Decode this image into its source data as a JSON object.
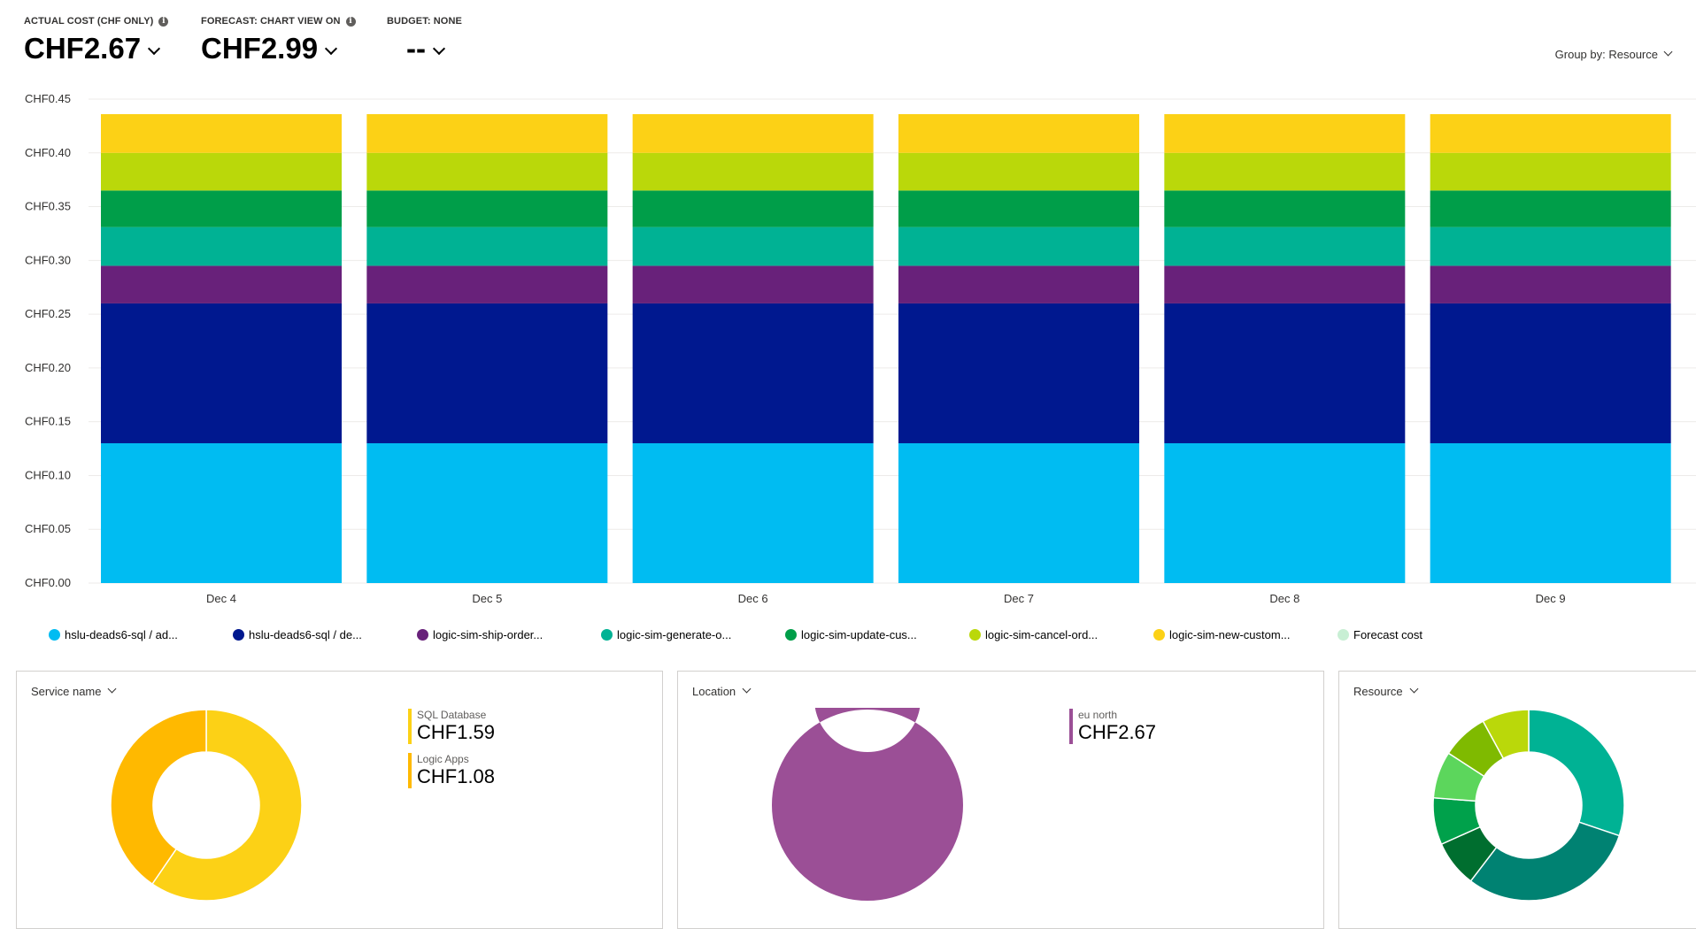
{
  "kpis": [
    {
      "label": "ACTUAL COST (CHF ONLY)",
      "value": "CHF2.67",
      "has_info": true
    },
    {
      "label": "FORECAST: CHART VIEW ON",
      "value": "CHF2.99",
      "has_info": true
    },
    {
      "label": "BUDGET: NONE",
      "value": "--",
      "has_info": false
    }
  ],
  "group_by": {
    "label": "Group by: Resource"
  },
  "chart_data": [
    {
      "type": "bar",
      "stacked": true,
      "categories": [
        "Dec 4",
        "Dec 5",
        "Dec 6",
        "Dec 7",
        "Dec 8",
        "Dec 9"
      ],
      "ylim": [
        0,
        0.45
      ],
      "yticks": [
        0,
        0.05,
        0.1,
        0.15,
        0.2,
        0.25,
        0.3,
        0.35,
        0.4,
        0.45
      ],
      "ytick_labels": [
        "CHF0.00",
        "CHF0.05",
        "CHF0.10",
        "CHF0.15",
        "CHF0.20",
        "CHF0.25",
        "CHF0.30",
        "CHF0.35",
        "CHF0.40",
        "CHF0.45"
      ],
      "grid": true,
      "legend_position": "bottom",
      "series": [
        {
          "name": "hslu-deads6-sql / ad...",
          "color": "#00bcf2",
          "values": [
            0.13,
            0.13,
            0.13,
            0.13,
            0.13,
            0.13
          ]
        },
        {
          "name": "hslu-deads6-sql / de...",
          "color": "#00188f",
          "values": [
            0.13,
            0.13,
            0.13,
            0.13,
            0.13,
            0.13
          ]
        },
        {
          "name": "logic-sim-ship-order...",
          "color": "#68217a",
          "values": [
            0.035,
            0.035,
            0.035,
            0.035,
            0.035,
            0.035
          ]
        },
        {
          "name": "logic-sim-generate-o...",
          "color": "#00b294",
          "values": [
            0.036,
            0.036,
            0.036,
            0.036,
            0.036,
            0.036
          ]
        },
        {
          "name": "logic-sim-update-cus...",
          "color": "#009e49",
          "values": [
            0.034,
            0.034,
            0.034,
            0.034,
            0.034,
            0.034
          ]
        },
        {
          "name": "logic-sim-cancel-ord...",
          "color": "#bad80a",
          "values": [
            0.035,
            0.035,
            0.035,
            0.035,
            0.035,
            0.035
          ]
        },
        {
          "name": "logic-sim-new-custom...",
          "color": "#fcd116",
          "values": [
            0.036,
            0.036,
            0.036,
            0.036,
            0.036,
            0.036
          ]
        }
      ],
      "extra_legend": [
        {
          "name": "Forecast cost",
          "color": "#c8efd4"
        }
      ]
    },
    {
      "type": "pie",
      "donut": true,
      "title": "Service name",
      "slices": [
        {
          "name": "SQL Database",
          "label_value": "CHF1.59",
          "value": 1.59,
          "color": "#fcd116"
        },
        {
          "name": "Logic Apps",
          "label_value": "CHF1.08",
          "value": 1.08,
          "color": "#ffb900"
        }
      ]
    },
    {
      "type": "pie",
      "donut": true,
      "title": "Location",
      "slices": [
        {
          "name": "eu north",
          "label_value": "CHF2.67",
          "value": 2.67,
          "color": "#9b4f96"
        }
      ]
    },
    {
      "type": "pie",
      "donut": true,
      "title": "Resource",
      "slices": [
        {
          "value": 0.8,
          "color": "#00b294"
        },
        {
          "value": 0.8,
          "color": "#008272"
        },
        {
          "value": 0.21,
          "color": "#006e2f"
        },
        {
          "value": 0.21,
          "color": "#00a14b"
        },
        {
          "value": 0.21,
          "color": "#5cd65c"
        },
        {
          "value": 0.21,
          "color": "#7fba00"
        },
        {
          "value": 0.21,
          "color": "#bad80a"
        }
      ]
    }
  ],
  "panels": {
    "service": {
      "header": "Service name"
    },
    "location": {
      "header": "Location"
    },
    "resource": {
      "header": "Resource"
    }
  }
}
